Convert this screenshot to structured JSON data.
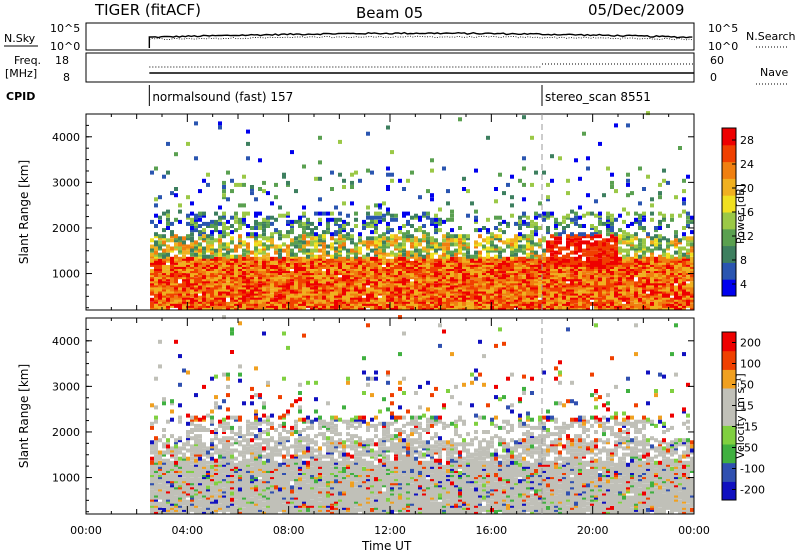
{
  "header": {
    "title": "TIGER (fitACF)",
    "beam": "Beam 05",
    "date": "05/Dec/2009"
  },
  "nsky_panel": {
    "left_label": "N.Sky",
    "right_label": "N.Search",
    "left_ticks": [
      "10^5",
      "10^0"
    ],
    "right_ticks": [
      "10^5",
      "10^0"
    ]
  },
  "freq_panel": {
    "left_label": "Freq.",
    "left_unit": "[MHz]",
    "left_ticks": [
      "18",
      "8"
    ],
    "right_ticks": [
      "60",
      "0"
    ],
    "right_label": "Nave"
  },
  "cpid_panel": {
    "label": "CPID",
    "modes": [
      {
        "name": "normalsound (fast) 157",
        "start_hour": 2.5
      },
      {
        "name": "stereo_scan 8551",
        "start_hour": 18.0
      }
    ]
  },
  "colors": {
    "power": [
      "#0000ee",
      "#2a55b0",
      "#3d7f5f",
      "#5aa050",
      "#9bc846",
      "#f0e020",
      "#f0b020",
      "#f07f10",
      "#f04000",
      "#ee0000"
    ],
    "velocity": [
      "#ee0000",
      "#f04000",
      "#f0a020",
      "#c0c0b8",
      "#c0c0b8",
      "#80d040",
      "#40b040",
      "#3050b0",
      "#1010c0"
    ]
  },
  "chart_data": [
    {
      "type": "heatmap",
      "panel": "power",
      "ylabel": "Slant Range [km]",
      "xlim": [
        0,
        24
      ],
      "ylim": [
        200,
        4500
      ],
      "yticks": [
        "1000",
        "2000",
        "3000",
        "4000"
      ],
      "colorbar": {
        "label": "Power [dB]",
        "ticks": [
          "4",
          "8",
          "12",
          "16",
          "20",
          "24",
          "28"
        ],
        "range": [
          0,
          30
        ]
      }
    },
    {
      "type": "heatmap",
      "panel": "velocity",
      "ylabel": "Slant Range [km]",
      "xlabel": "Time UT",
      "xlim": [
        0,
        24
      ],
      "ylim": [
        200,
        4500
      ],
      "xticks": [
        "00:00",
        "04:00",
        "08:00",
        "12:00",
        "16:00",
        "20:00",
        "00:00"
      ],
      "yticks": [
        "1000",
        "2000",
        "3000",
        "4000"
      ],
      "colorbar": {
        "label": "Velocity [m s⁻¹]",
        "ticks": [
          "200",
          "100",
          "50",
          "15",
          "-15",
          "-50",
          "-100",
          "-200"
        ],
        "range": [
          -250,
          250
        ]
      }
    }
  ]
}
